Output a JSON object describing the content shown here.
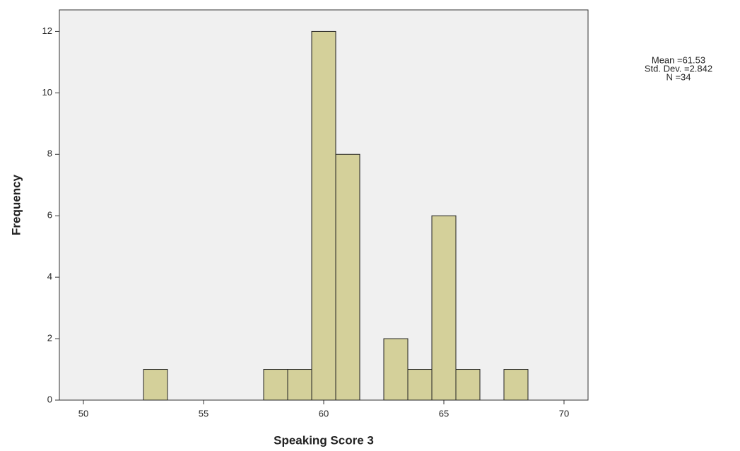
{
  "chart_data": {
    "type": "histogram",
    "xlabel": "Speaking Score 3",
    "ylabel": "Frequency",
    "annotations": [
      "Mean =61.53",
      "Std. Dev. =2.842",
      "N =34"
    ],
    "bins": [
      52.5,
      53.5,
      54.5,
      55.5,
      56.5,
      57.5,
      58.5,
      59.5,
      60.5,
      61.5,
      62.5,
      63.5,
      64.5,
      65.5,
      66.5,
      67.5,
      68.5
    ],
    "values": [
      1,
      0,
      0,
      0,
      0,
      1,
      1,
      12,
      8,
      0,
      2,
      1,
      6,
      1,
      0,
      1
    ],
    "color": "#d4d09a",
    "xlim": [
      49,
      71
    ],
    "xticks": [
      50,
      55,
      60,
      65,
      70
    ],
    "ylim": [
      0,
      12.7
    ],
    "yticks": [
      0,
      2,
      4,
      6,
      8,
      10,
      12
    ]
  }
}
